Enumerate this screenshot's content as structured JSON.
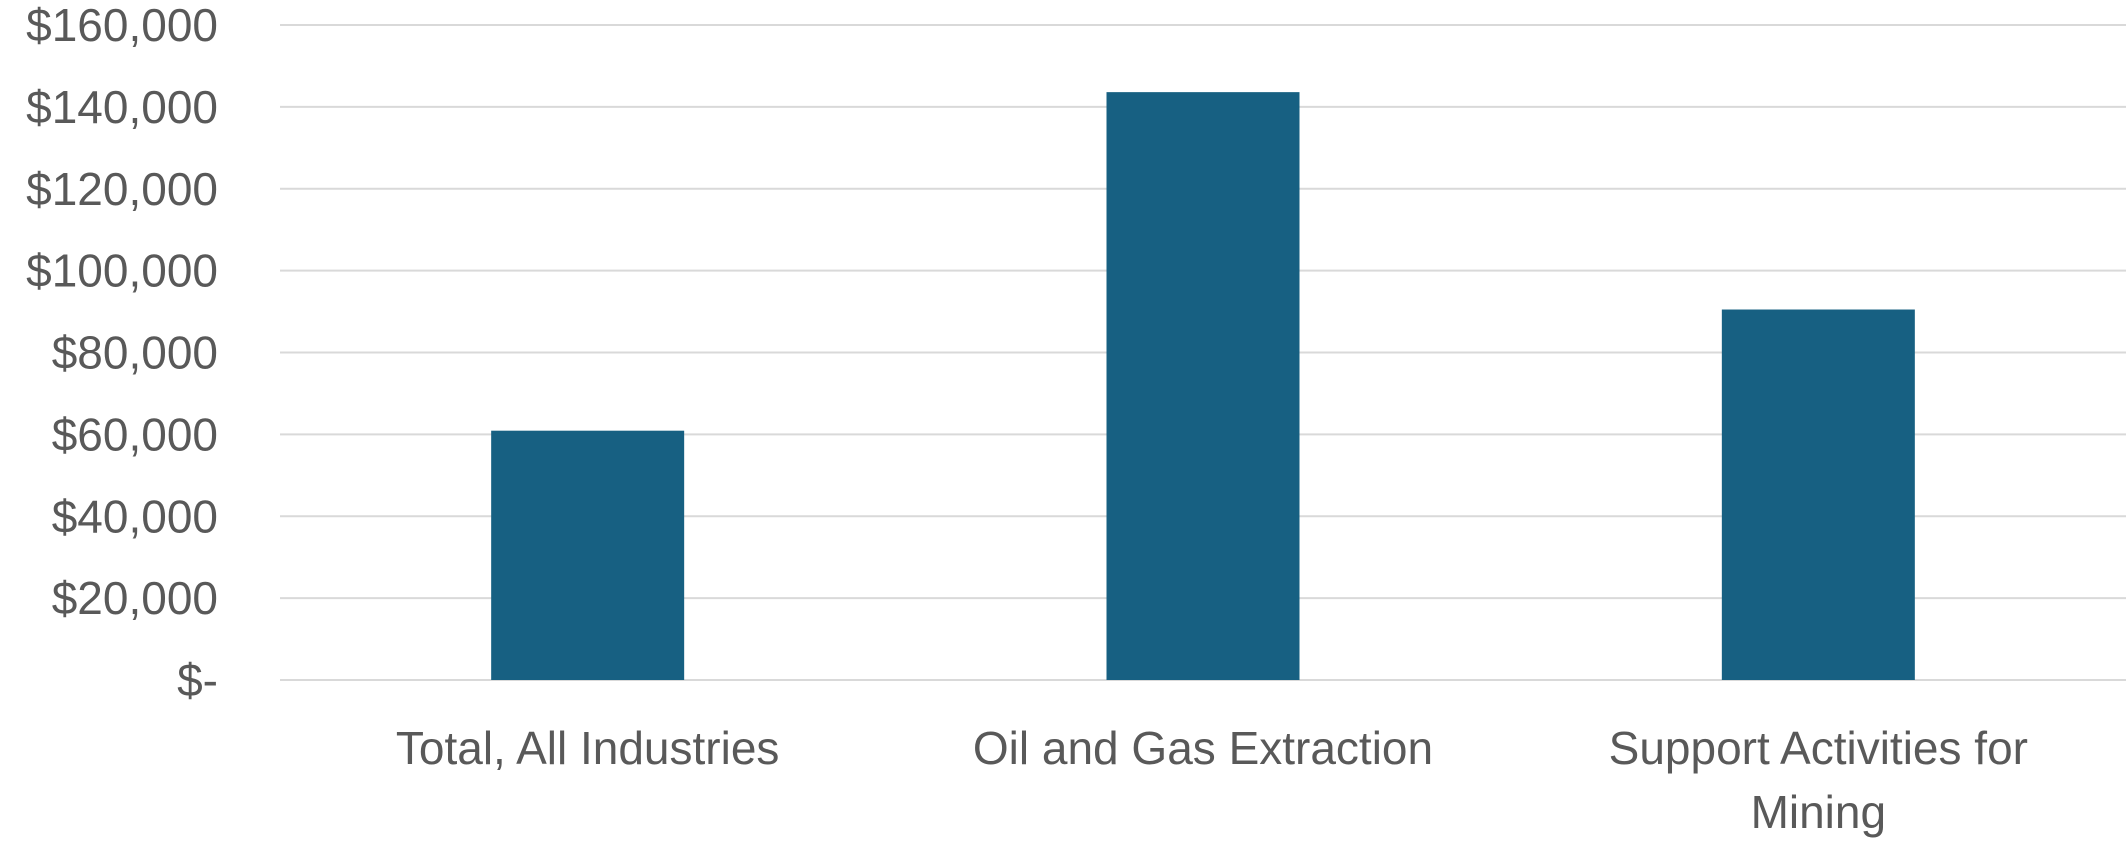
{
  "chart_data": {
    "type": "bar",
    "title": "",
    "xlabel": "",
    "ylabel": "",
    "categories": [
      [
        "Total, All Industries"
      ],
      [
        "Oil and Gas Extraction"
      ],
      [
        "Support Activities for",
        "Mining"
      ]
    ],
    "values": [
      60900,
      143600,
      90500
    ],
    "ylim": [
      0,
      160000
    ],
    "yticks": [
      0,
      20000,
      40000,
      60000,
      80000,
      100000,
      120000,
      140000,
      160000
    ],
    "ytick_labels": [
      "$-",
      "$20,000",
      "$40,000",
      "$60,000",
      "$80,000",
      "$100,000",
      "$120,000",
      "$140,000",
      "$160,000"
    ],
    "grid": true,
    "legend": "none",
    "bar_color": "#176082"
  }
}
